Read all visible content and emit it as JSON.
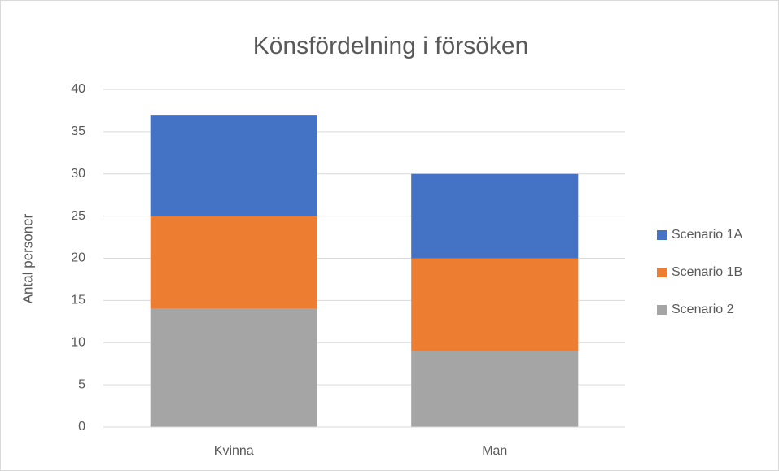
{
  "chart_data": {
    "type": "stacked_bar",
    "title": "Könsfördelning i försöken",
    "y_label": "Antal personer",
    "categories": [
      "Kvinna",
      "Man"
    ],
    "series": [
      {
        "name": "Scenario 1A",
        "color": "#4472c4",
        "values": [
          12,
          10
        ]
      },
      {
        "name": "Scenario 1B",
        "color": "#ed7d31",
        "values": [
          11,
          11
        ]
      },
      {
        "name": "Scenario 2",
        "color": "#a5a5a5",
        "values": [
          14,
          9
        ]
      }
    ],
    "ylim": [
      0,
      40
    ],
    "yticks": [
      0,
      5,
      10,
      15,
      20,
      25,
      30,
      35,
      40
    ],
    "grid": true,
    "legend": "right"
  }
}
